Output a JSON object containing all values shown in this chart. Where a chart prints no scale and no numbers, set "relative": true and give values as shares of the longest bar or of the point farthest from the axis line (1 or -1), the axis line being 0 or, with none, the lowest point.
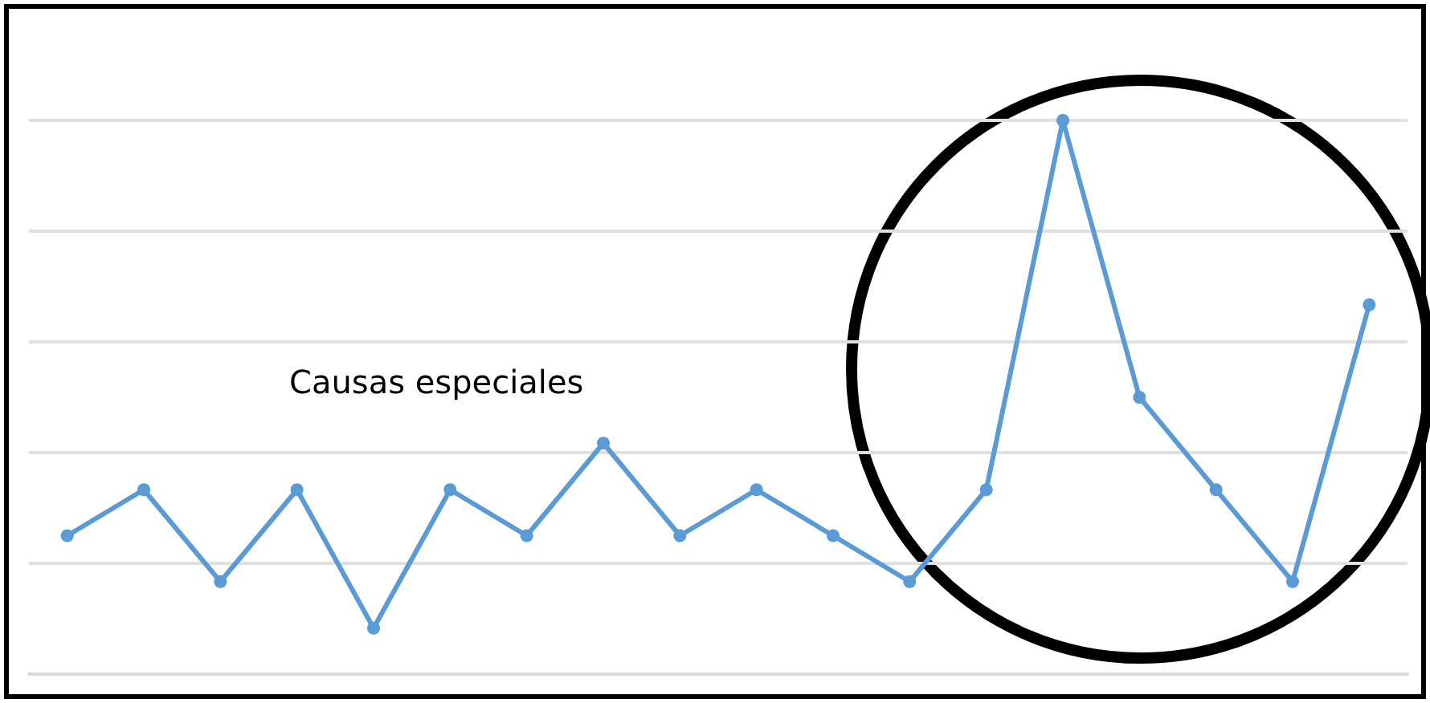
{
  "chart_data": {
    "type": "line",
    "relative": true,
    "categories": [
      null,
      null,
      null,
      null,
      null,
      null,
      null,
      null,
      null,
      null,
      null,
      null,
      null,
      null,
      null,
      null,
      null,
      null
    ],
    "values": [
      0.25,
      0.333,
      0.167,
      0.333,
      0.083,
      0.333,
      0.25,
      0.417,
      0.25,
      0.333,
      0.25,
      0.167,
      0.333,
      1,
      0.5,
      0.333,
      0.167,
      0.667
    ],
    "color": "#5b9bd5",
    "marker": "circle",
    "grid": "y",
    "annotations": [
      "Causas especiales"
    ]
  }
}
